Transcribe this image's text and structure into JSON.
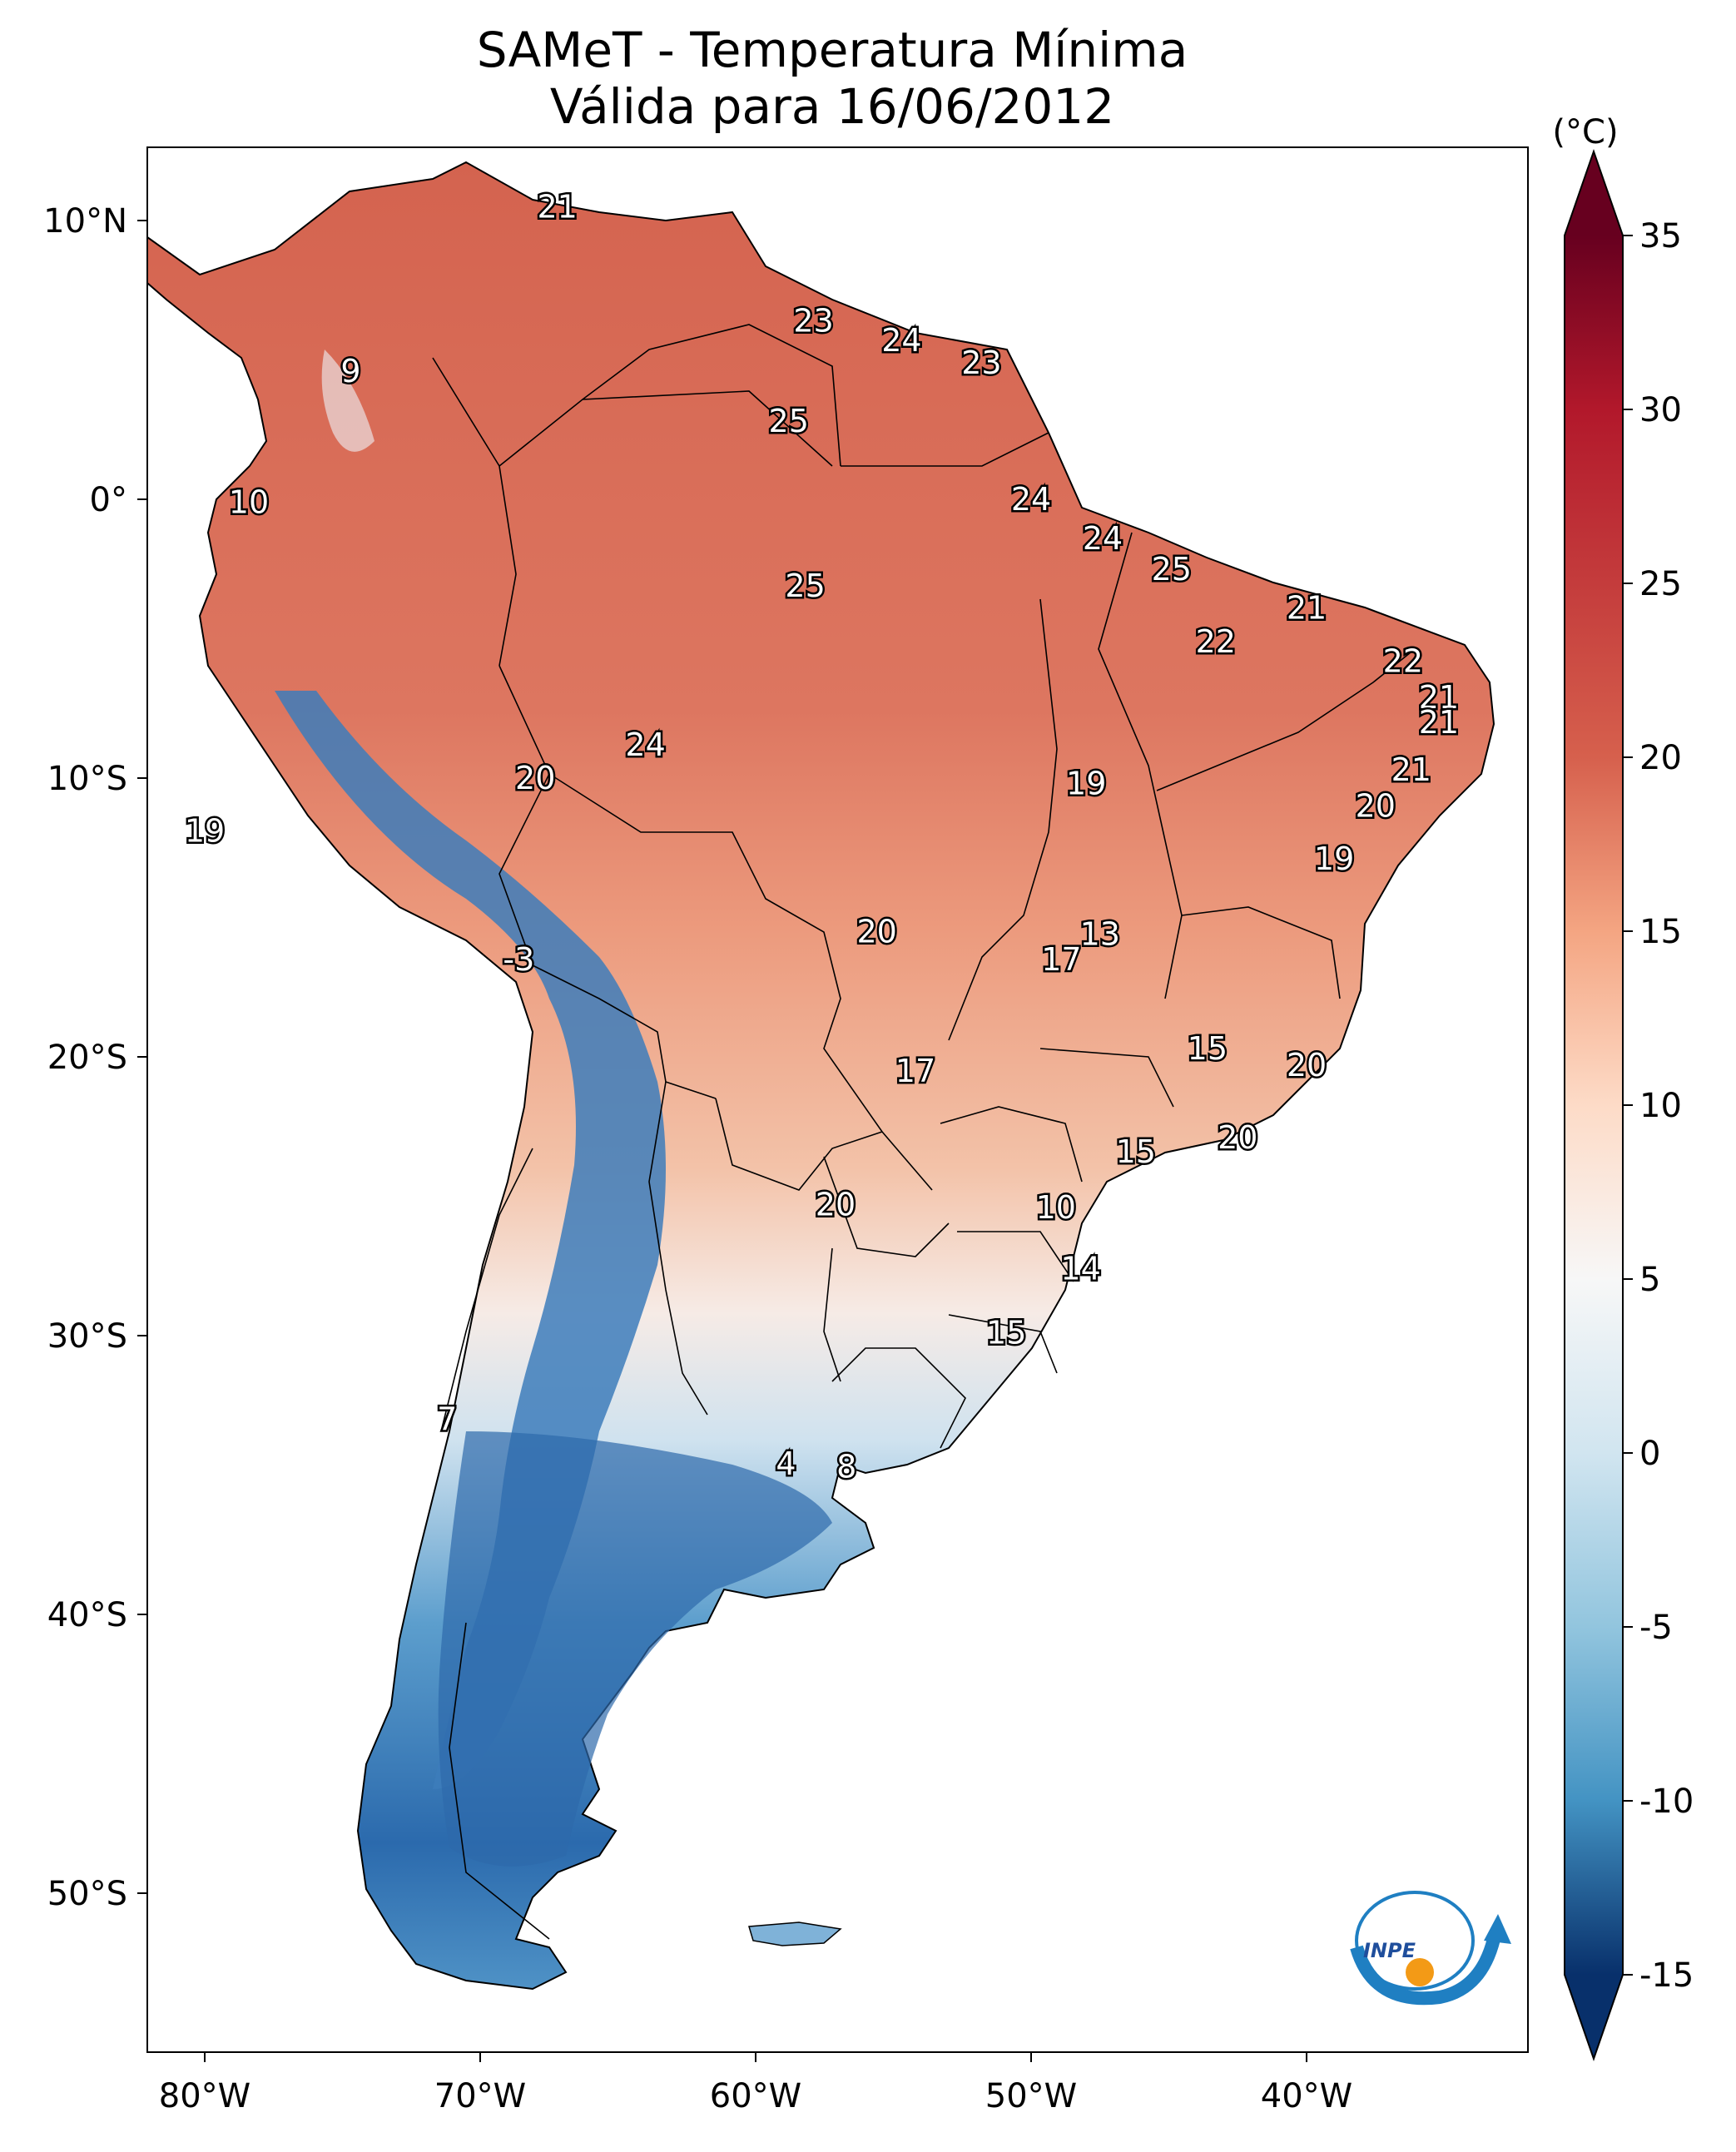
{
  "title_line1": "SAMeT - Temperatura Mínima",
  "title_line2": "Válida para 16/06/2012",
  "colorbar": {
    "unit": "(°C)",
    "ticks": [
      35,
      30,
      25,
      20,
      15,
      10,
      5,
      0,
      -5,
      -10,
      -15
    ],
    "tick_labels": [
      "35",
      "30",
      "25",
      "20",
      "15",
      "10",
      "5",
      "0",
      "-5",
      "-10",
      "-15"
    ],
    "range": [
      -15,
      35
    ],
    "colors": [
      "#08306b",
      "#2166ac",
      "#4393c3",
      "#92c5de",
      "#d1e5f0",
      "#f7f7f7",
      "#fddbc7",
      "#f4a582",
      "#d6604d",
      "#b2182b",
      "#67001f"
    ]
  },
  "axes": {
    "lon_labels": [
      "80°W",
      "70°W",
      "60°W",
      "50°W",
      "40°W"
    ],
    "lat_labels": [
      "10°N",
      "0°",
      "10°S",
      "20°S",
      "30°S",
      "40°S",
      "50°S"
    ]
  },
  "map_values": [
    {
      "label": "21",
      "lon": -67.2,
      "lat": 10.5
    },
    {
      "label": "9",
      "lon": -74.7,
      "lat": 4.6
    },
    {
      "label": "23",
      "lon": -57.9,
      "lat": 6.4
    },
    {
      "label": "24",
      "lon": -54.7,
      "lat": 5.7
    },
    {
      "label": "23",
      "lon": -51.8,
      "lat": 4.9
    },
    {
      "label": "25",
      "lon": -58.8,
      "lat": 2.8
    },
    {
      "label": "10",
      "lon": -78.4,
      "lat": -0.1
    },
    {
      "label": "24",
      "lon": -50.0,
      "lat": 0.0
    },
    {
      "label": "24",
      "lon": -47.4,
      "lat": -1.4
    },
    {
      "label": "25",
      "lon": -44.9,
      "lat": -2.5
    },
    {
      "label": "25",
      "lon": -58.2,
      "lat": -3.1
    },
    {
      "label": "21",
      "lon": -40.0,
      "lat": -3.9
    },
    {
      "label": "22",
      "lon": -43.3,
      "lat": -5.1
    },
    {
      "label": "22",
      "lon": -36.5,
      "lat": -5.8
    },
    {
      "label": "21",
      "lon": -35.2,
      "lat": -7.1
    },
    {
      "label": "21",
      "lon": -35.2,
      "lat": -8.0
    },
    {
      "label": "24",
      "lon": -64.0,
      "lat": -8.8
    },
    {
      "label": "21",
      "lon": -36.2,
      "lat": -9.7
    },
    {
      "label": "20",
      "lon": -68.0,
      "lat": -10.0
    },
    {
      "label": "19",
      "lon": -48.0,
      "lat": -10.2
    },
    {
      "label": "20",
      "lon": -37.5,
      "lat": -11.0
    },
    {
      "label": "19",
      "lon": -80.0,
      "lat": -11.9
    },
    {
      "label": "19",
      "lon": -39.0,
      "lat": -12.9
    },
    {
      "label": "13",
      "lon": -47.5,
      "lat": -15.6
    },
    {
      "label": "20",
      "lon": -55.6,
      "lat": -15.5
    },
    {
      "label": "17",
      "lon": -48.9,
      "lat": -16.5
    },
    {
      "label": "-3",
      "lon": -68.6,
      "lat": -16.5
    },
    {
      "label": "15",
      "lon": -43.6,
      "lat": -19.7
    },
    {
      "label": "20",
      "lon": -40.0,
      "lat": -20.3
    },
    {
      "label": "17",
      "lon": -54.2,
      "lat": -20.5
    },
    {
      "label": "20",
      "lon": -42.5,
      "lat": -22.9
    },
    {
      "label": "15",
      "lon": -46.2,
      "lat": -23.4
    },
    {
      "label": "20",
      "lon": -57.1,
      "lat": -25.3
    },
    {
      "label": "10",
      "lon": -49.1,
      "lat": -25.4
    },
    {
      "label": "14",
      "lon": -48.2,
      "lat": -27.6
    },
    {
      "label": "15",
      "lon": -50.9,
      "lat": -29.9
    },
    {
      "label": "7",
      "lon": -71.2,
      "lat": -33.0
    },
    {
      "label": "4",
      "lon": -58.9,
      "lat": -34.6
    },
    {
      "label": "8",
      "lon": -56.7,
      "lat": -34.7
    }
  ],
  "logo": {
    "text": "INPE"
  }
}
